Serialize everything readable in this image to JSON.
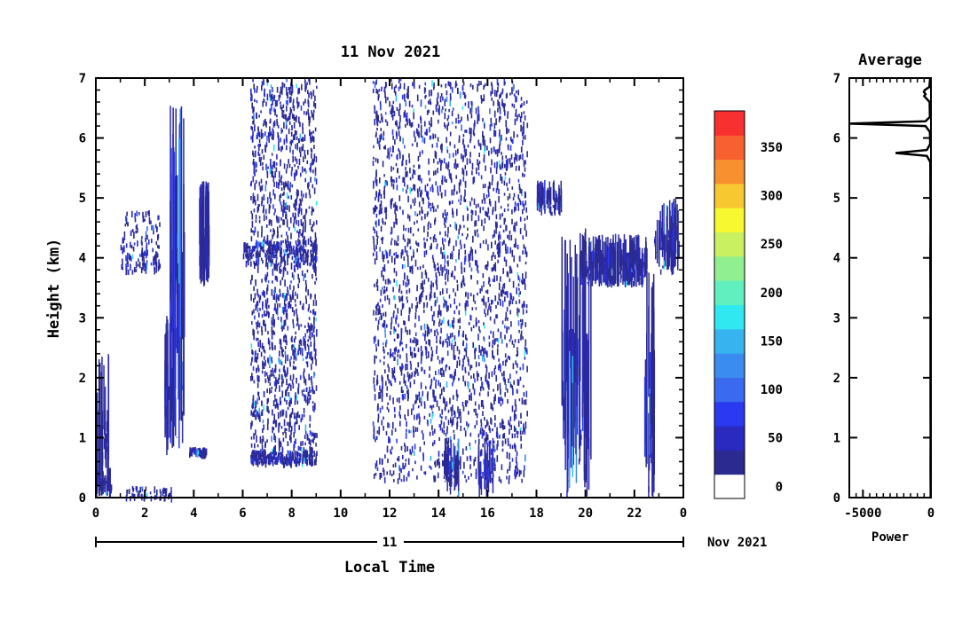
{
  "chart_data": [
    {
      "type": "heatmap",
      "title": "11 Nov 2021",
      "xlabel": "Local Time",
      "ylabel": "Height (km)",
      "x_ticks": [
        "0",
        "2",
        "4",
        "6",
        "8",
        "10",
        "12",
        "14",
        "16",
        "18",
        "20",
        "22",
        "0"
      ],
      "xlim": [
        0,
        24
      ],
      "y_ticks": [
        "0",
        "1",
        "2",
        "3",
        "4",
        "5",
        "6",
        "7"
      ],
      "ylim": [
        0,
        7
      ],
      "date_bar": {
        "day_label": "11",
        "month_label": "Nov 2021"
      },
      "colorbar": {
        "ticks": [
          "0",
          "50",
          "100",
          "150",
          "200",
          "250",
          "300",
          "350"
        ],
        "colors": [
          "#ffffff",
          "#2a2a90",
          "#2a2ac0",
          "#2a3af0",
          "#3a6af0",
          "#3a8cf0",
          "#36b4f0",
          "#30e8f0",
          "#60f0c0",
          "#90f090",
          "#c8f060",
          "#f8f830",
          "#f8c830",
          "#f89030",
          "#f86030",
          "#f83030"
        ]
      },
      "grid": false
    },
    {
      "type": "line",
      "title": "Average",
      "xlabel": "Power",
      "x_ticks": [
        "-5000",
        "0"
      ],
      "xlim": [
        -6000,
        0
      ],
      "y_ticks": [
        "0",
        "1",
        "2",
        "3",
        "4",
        "5",
        "6",
        "7"
      ],
      "ylim": [
        0,
        7
      ],
      "profile": [
        [
          0.0,
          -20
        ],
        [
          0.5,
          -30
        ],
        [
          1.0,
          -25
        ],
        [
          1.5,
          -30
        ],
        [
          2.0,
          -35
        ],
        [
          2.5,
          -30
        ],
        [
          3.0,
          -35
        ],
        [
          3.5,
          -40
        ],
        [
          4.0,
          -45
        ],
        [
          4.5,
          -35
        ],
        [
          5.0,
          -40
        ],
        [
          5.5,
          -45
        ],
        [
          5.6,
          -50
        ],
        [
          5.7,
          -300
        ],
        [
          5.75,
          -2600
        ],
        [
          5.8,
          -300
        ],
        [
          5.9,
          -60
        ],
        [
          6.1,
          -80
        ],
        [
          6.2,
          -400
        ],
        [
          6.24,
          -6000
        ],
        [
          6.28,
          -400
        ],
        [
          6.35,
          -80
        ],
        [
          6.6,
          -100
        ],
        [
          6.7,
          -500
        ],
        [
          6.73,
          -400
        ],
        [
          6.77,
          -520
        ],
        [
          6.8,
          -450
        ],
        [
          6.85,
          -120
        ],
        [
          7.0,
          -60
        ]
      ]
    }
  ]
}
